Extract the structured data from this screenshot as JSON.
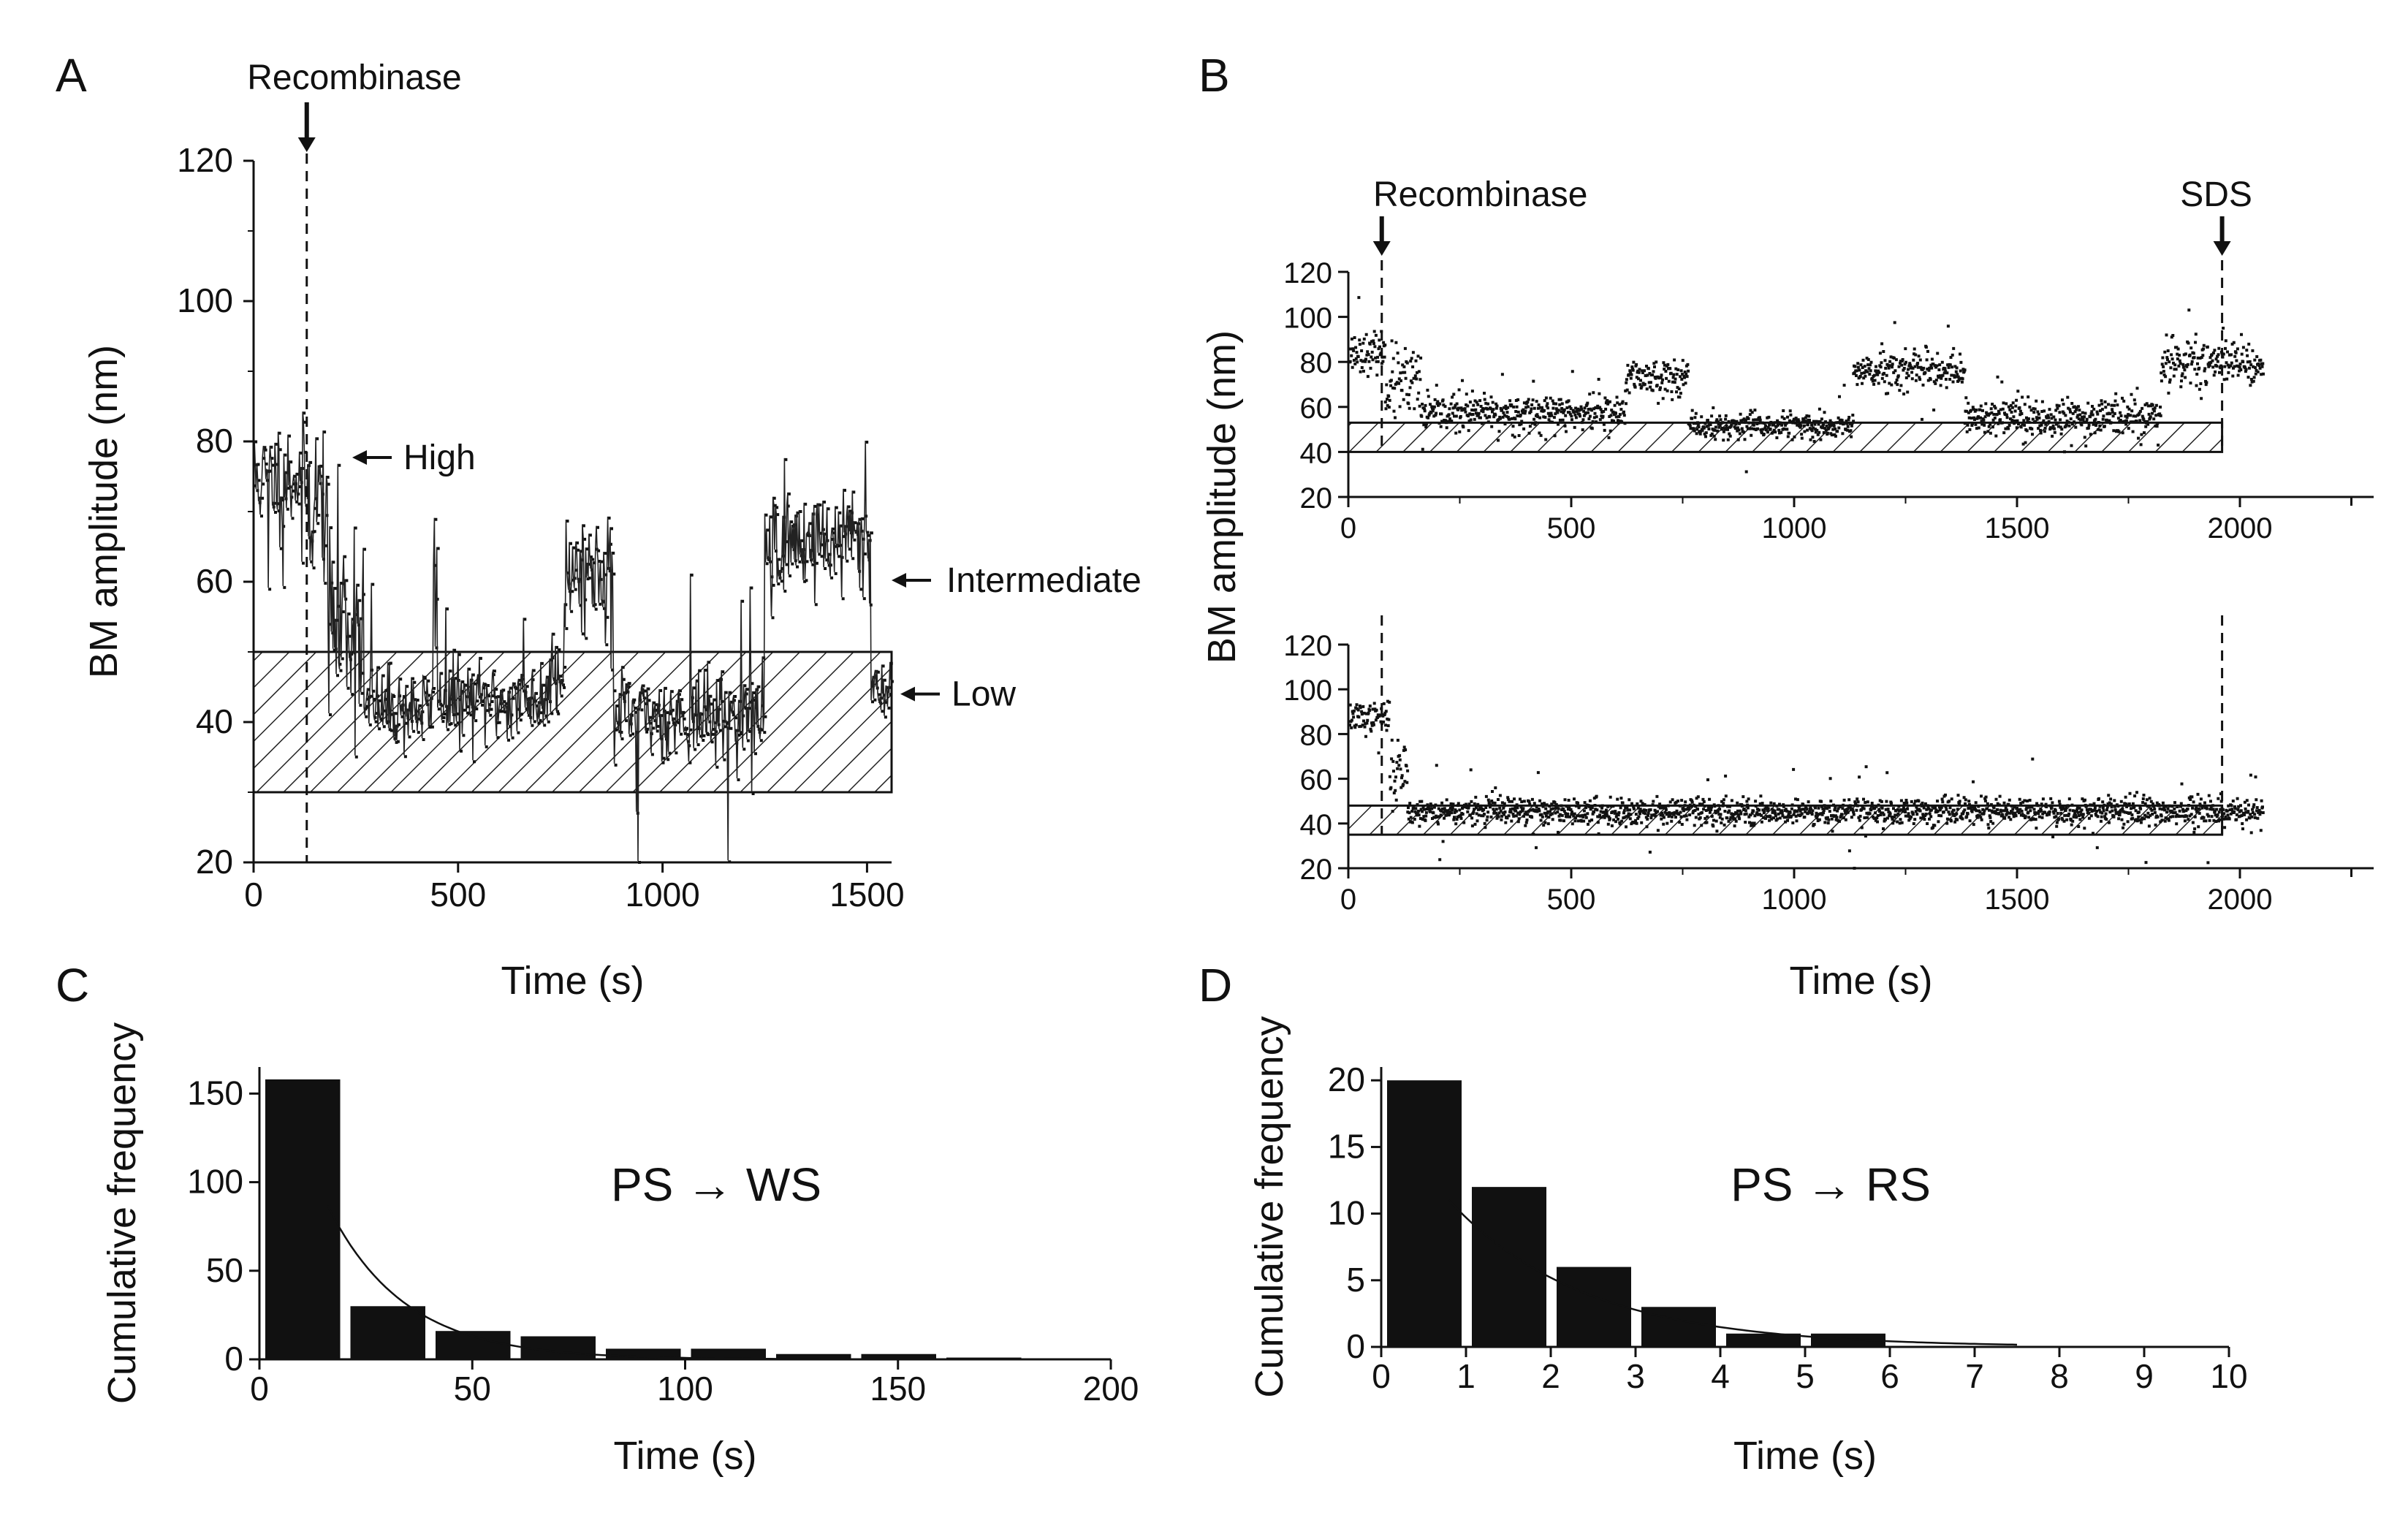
{
  "chart_data": [
    {
      "id": "A",
      "type": "scatter",
      "panel_label": "A",
      "xlabel": "Time (s)",
      "ylabel": "BM amplitude (nm)",
      "xlim": [
        0,
        1560
      ],
      "ylim": [
        20,
        120
      ],
      "x_ticks": [
        0,
        500,
        1000,
        1500
      ],
      "y_ticks": [
        20,
        40,
        60,
        80,
        100,
        120
      ],
      "x_tick_labels": [
        "0",
        "500",
        "1000",
        "1500"
      ],
      "y_tick_labels": [
        "20",
        "40",
        "60",
        "80",
        "100",
        "120"
      ],
      "event": {
        "label": "Recombinase",
        "x": 130
      },
      "shaded_band": {
        "y0": 30,
        "y1": 50,
        "x0": 0,
        "x1": 1560
      },
      "state_labels": [
        {
          "label": "High",
          "y": 80
        },
        {
          "label": "Intermediate",
          "y": 60
        },
        {
          "label": "Low",
          "y": 44
        }
      ],
      "segments": [
        {
          "x0": 0,
          "x1": 130,
          "mean": 75,
          "sd": 4
        },
        {
          "x0": 130,
          "x1": 180,
          "mean": 72,
          "sd": 6
        },
        {
          "x0": 180,
          "x1": 270,
          "mean": 55,
          "sd": 8
        },
        {
          "x0": 270,
          "x1": 440,
          "mean": 42,
          "sd": 3
        },
        {
          "x0": 440,
          "x1": 450,
          "mean": 62,
          "sd": 5
        },
        {
          "x0": 450,
          "x1": 720,
          "mean": 43,
          "sd": 3
        },
        {
          "x0": 720,
          "x1": 760,
          "mean": 48,
          "sd": 4
        },
        {
          "x0": 760,
          "x1": 880,
          "mean": 62,
          "sd": 4
        },
        {
          "x0": 880,
          "x1": 1250,
          "mean": 41,
          "sd": 3
        },
        {
          "x0": 1250,
          "x1": 1510,
          "mean": 66,
          "sd": 4
        },
        {
          "x0": 1510,
          "x1": 1560,
          "mean": 45,
          "sd": 3
        }
      ]
    },
    {
      "id": "B1",
      "type": "scatter",
      "panel_label": "B",
      "xlabel": "",
      "ylabel": "",
      "xlim": [
        0,
        2300
      ],
      "ylim": [
        20,
        120
      ],
      "x_ticks": [
        0,
        500,
        1000,
        1500,
        2000
      ],
      "y_ticks": [
        20,
        40,
        60,
        80,
        100,
        120
      ],
      "x_tick_labels": [
        "0",
        "500",
        "1000",
        "1500",
        "2000"
      ],
      "y_tick_labels": [
        "20",
        "40",
        "60",
        "80",
        "100",
        "120"
      ],
      "events": [
        {
          "label": "Recombinase",
          "x": 75
        },
        {
          "label": "SDS",
          "x": 1960
        }
      ],
      "shaded_band": {
        "y0": 40,
        "y1": 53,
        "x0": 0,
        "x1": 1960
      },
      "segments": [
        {
          "x0": 0,
          "x1": 80,
          "mean": 85,
          "sd": 4
        },
        {
          "x0": 80,
          "x1": 160,
          "mean": 70,
          "sd": 8
        },
        {
          "x0": 160,
          "x1": 620,
          "mean": 58,
          "sd": 4
        },
        {
          "x0": 620,
          "x1": 760,
          "mean": 74,
          "sd": 4
        },
        {
          "x0": 760,
          "x1": 1130,
          "mean": 52,
          "sd": 3
        },
        {
          "x0": 1130,
          "x1": 1380,
          "mean": 76,
          "sd": 4
        },
        {
          "x0": 1380,
          "x1": 1820,
          "mean": 56,
          "sd": 4
        },
        {
          "x0": 1820,
          "x1": 2050,
          "mean": 80,
          "sd": 5
        }
      ]
    },
    {
      "id": "B2",
      "type": "scatter",
      "xlabel": "Time (s)",
      "ylabel": "BM amplitude (nm)",
      "xlim": [
        0,
        2300
      ],
      "ylim": [
        20,
        120
      ],
      "x_ticks": [
        0,
        500,
        1000,
        1500,
        2000
      ],
      "y_ticks": [
        20,
        40,
        60,
        80,
        100,
        120
      ],
      "x_tick_labels": [
        "0",
        "500",
        "1000",
        "1500",
        "2000"
      ],
      "y_tick_labels": [
        "20",
        "40",
        "60",
        "80",
        "100",
        "120"
      ],
      "events": [
        {
          "x": 75
        },
        {
          "x": 1960
        }
      ],
      "shaded_band": {
        "y0": 35,
        "y1": 48,
        "x0": 0,
        "x1": 1960
      },
      "segments": [
        {
          "x0": 0,
          "x1": 90,
          "mean": 88,
          "sd": 3
        },
        {
          "x0": 90,
          "x1": 130,
          "mean": 65,
          "sd": 8
        },
        {
          "x0": 130,
          "x1": 2050,
          "mean": 46,
          "sd": 3
        }
      ]
    },
    {
      "id": "C",
      "type": "bar",
      "panel_label": "C",
      "xlabel": "Time (s)",
      "ylabel": "Cumulative frequency",
      "xlim": [
        0,
        200
      ],
      "ylim": [
        0,
        165
      ],
      "x_ticks": [
        0,
        50,
        100,
        150,
        200
      ],
      "y_ticks": [
        0,
        50,
        100,
        150
      ],
      "x_tick_labels": [
        "0",
        "50",
        "100",
        "150",
        "200"
      ],
      "y_tick_labels": [
        "0",
        "50",
        "100",
        "150"
      ],
      "bin_width": 20,
      "bins_left": [
        0,
        20,
        40,
        60,
        80,
        100,
        120,
        140,
        160
      ],
      "values": [
        158,
        30,
        16,
        13,
        6,
        6,
        3,
        3,
        1
      ],
      "fit": {
        "type": "exponential",
        "A": 158,
        "tau": 18,
        "x0": 16,
        "x1": 180
      },
      "annotation": "PS → WS"
    },
    {
      "id": "D",
      "type": "bar",
      "panel_label": "D",
      "xlabel": "Time (s)",
      "ylabel": "Cumulative frequency",
      "xlim": [
        0,
        10
      ],
      "ylim": [
        0,
        21
      ],
      "x_ticks": [
        0,
        1,
        2,
        3,
        4,
        5,
        6,
        7,
        8,
        9,
        10
      ],
      "y_ticks": [
        0,
        5,
        10,
        15,
        20
      ],
      "x_tick_labels": [
        "0",
        "1",
        "2",
        "3",
        "4",
        "5",
        "6",
        "7",
        "8",
        "9",
        "10"
      ],
      "y_tick_labels": [
        "0",
        "5",
        "10",
        "15",
        "20"
      ],
      "bin_width": 1,
      "bins_left": [
        0,
        1,
        2,
        3,
        4,
        5
      ],
      "values": [
        20,
        12,
        6,
        3,
        1,
        1
      ],
      "fit": {
        "type": "exponential",
        "A": 20,
        "tau": 1.6,
        "x0": 0.8,
        "x1": 7.5
      },
      "annotation": "PS → RS"
    }
  ]
}
